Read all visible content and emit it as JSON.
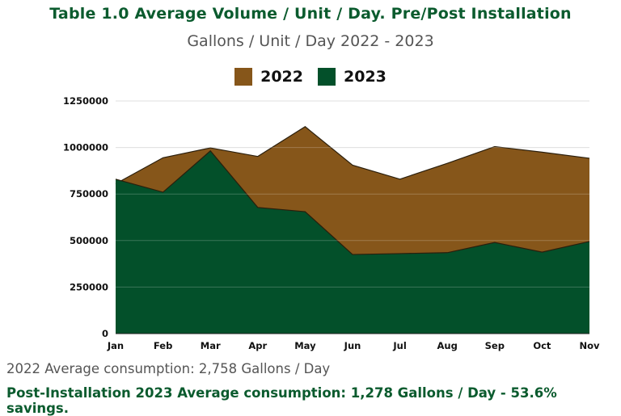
{
  "header": {
    "title": "Table 1.0 Average Volume / Unit / Day. Pre/Post Installation",
    "subtitle": "Gallons / Unit / Day 2022 - 2023"
  },
  "colors": {
    "brand_green": "#0b5b2e",
    "series_2022": "#86561a",
    "series_2023": "#03502a",
    "outline": "#2a1e0c",
    "grid": "#d6d6d6"
  },
  "chart_data": {
    "type": "area",
    "categories": [
      "Jan",
      "Feb",
      "Mar",
      "Apr",
      "May",
      "Jun",
      "Jul",
      "Aug",
      "Sep",
      "Oct",
      "Nov"
    ],
    "series": [
      {
        "name": "2022",
        "values": [
          805000,
          945000,
          998000,
          952000,
          1112000,
          905000,
          830000,
          915000,
          1005000,
          975000,
          942000
        ]
      },
      {
        "name": "2023",
        "values": [
          830000,
          760000,
          982000,
          678000,
          655000,
          425000,
          430000,
          435000,
          490000,
          438000,
          495000
        ]
      }
    ],
    "yticks": [
      "0",
      "250000",
      "500000",
      "750000",
      "1000000",
      "1250000"
    ],
    "ylim": [
      0,
      1250000
    ],
    "grid": true,
    "legend": "top-center"
  },
  "notes": {
    "line1": "2022 Average consumption: 2,758 Gallons / Day",
    "line2": "Post-Installation 2023 Average consumption: 1,278 Gallons / Day - 53.6% savings."
  }
}
